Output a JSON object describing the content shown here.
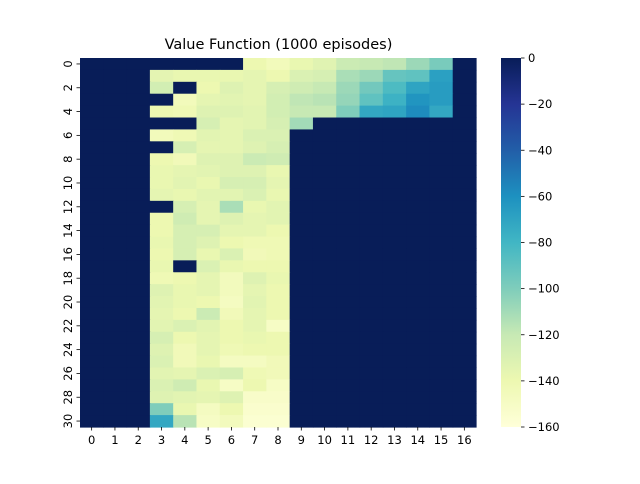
{
  "chart_data": {
    "type": "heatmap",
    "title": "Value Function (1000 episodes)",
    "xlabel": "",
    "ylabel": "",
    "x_ticks": [
      "0",
      "1",
      "2",
      "3",
      "4",
      "5",
      "6",
      "7",
      "8",
      "9",
      "10",
      "11",
      "12",
      "13",
      "14",
      "15",
      "16"
    ],
    "y_ticks": [
      "0",
      "2",
      "4",
      "6",
      "8",
      "10",
      "12",
      "14",
      "16",
      "18",
      "20",
      "22",
      "24",
      "26",
      "28",
      "30"
    ],
    "n_rows": 31,
    "n_cols": 17,
    "colormap": "YlGnBu",
    "vmin": -160,
    "vmax": 0,
    "colorbar_ticks": [
      "0",
      "−20",
      "−40",
      "−60",
      "−80",
      "−100",
      "−120",
      "−140",
      "−160"
    ],
    "values": [
      [
        0,
        0,
        0,
        0,
        0,
        0,
        0,
        -140,
        -145,
        -138,
        -133,
        -122,
        -120,
        -118,
        -108,
        -98,
        0
      ],
      [
        0,
        0,
        0,
        -135,
        -138,
        -138,
        -138,
        -136,
        -140,
        -130,
        -128,
        -112,
        -108,
        -92,
        -90,
        -68,
        0
      ],
      [
        0,
        0,
        0,
        -126,
        0,
        -140,
        -132,
        -136,
        -128,
        -124,
        -120,
        -108,
        -96,
        -84,
        -70,
        -66,
        0
      ],
      [
        0,
        0,
        0,
        0,
        -145,
        -136,
        -134,
        -136,
        -126,
        -118,
        -116,
        -106,
        -90,
        -78,
        -62,
        -66,
        0
      ],
      [
        0,
        0,
        0,
        -140,
        -142,
        -132,
        -132,
        -134,
        -126,
        -120,
        -120,
        -100,
        -72,
        -70,
        -58,
        -72,
        0
      ],
      [
        0,
        0,
        0,
        0,
        0,
        -128,
        -136,
        -134,
        -128,
        -110,
        0,
        0,
        0,
        0,
        0,
        0,
        0
      ],
      [
        0,
        0,
        0,
        -145,
        -142,
        -134,
        -136,
        -130,
        -130,
        0,
        0,
        0,
        0,
        0,
        0,
        0,
        0
      ],
      [
        0,
        0,
        0,
        0,
        -128,
        -136,
        -136,
        -132,
        -128,
        0,
        0,
        0,
        0,
        0,
        0,
        0,
        0
      ],
      [
        0,
        0,
        0,
        -140,
        -144,
        -132,
        -132,
        -122,
        -124,
        0,
        0,
        0,
        0,
        0,
        0,
        0,
        0
      ],
      [
        0,
        0,
        0,
        -138,
        -136,
        -134,
        -132,
        -132,
        -138,
        0,
        0,
        0,
        0,
        0,
        0,
        0,
        0
      ],
      [
        0,
        0,
        0,
        -138,
        -134,
        -138,
        -128,
        -128,
        -136,
        0,
        0,
        0,
        0,
        0,
        0,
        0,
        0
      ],
      [
        0,
        0,
        0,
        -136,
        -138,
        -134,
        -134,
        -130,
        -138,
        0,
        0,
        0,
        0,
        0,
        0,
        0,
        0
      ],
      [
        0,
        0,
        0,
        0,
        -128,
        -136,
        -112,
        -138,
        -134,
        0,
        0,
        0,
        0,
        0,
        0,
        0,
        0
      ],
      [
        0,
        0,
        0,
        -140,
        -124,
        -136,
        -132,
        -136,
        -134,
        0,
        0,
        0,
        0,
        0,
        0,
        0,
        0
      ],
      [
        0,
        0,
        0,
        -140,
        -128,
        -128,
        -136,
        -136,
        -140,
        0,
        0,
        0,
        0,
        0,
        0,
        0,
        0
      ],
      [
        0,
        0,
        0,
        -138,
        -128,
        -132,
        -140,
        -142,
        -142,
        0,
        0,
        0,
        0,
        0,
        0,
        0,
        0
      ],
      [
        0,
        0,
        0,
        -140,
        -128,
        -138,
        -130,
        -144,
        -142,
        0,
        0,
        0,
        0,
        0,
        0,
        0,
        0
      ],
      [
        0,
        0,
        0,
        -138,
        0,
        -130,
        -138,
        -140,
        -140,
        0,
        0,
        0,
        0,
        0,
        0,
        0,
        0
      ],
      [
        0,
        0,
        0,
        -142,
        -140,
        -136,
        -146,
        -132,
        -138,
        0,
        0,
        0,
        0,
        0,
        0,
        0,
        0
      ],
      [
        0,
        0,
        0,
        -132,
        -138,
        -136,
        -146,
        -136,
        -140,
        0,
        0,
        0,
        0,
        0,
        0,
        0,
        0
      ],
      [
        0,
        0,
        0,
        -134,
        -138,
        -140,
        -148,
        -134,
        -140,
        0,
        0,
        0,
        0,
        0,
        0,
        0,
        0
      ],
      [
        0,
        0,
        0,
        -136,
        -140,
        -122,
        -144,
        -136,
        -140,
        0,
        0,
        0,
        0,
        0,
        0,
        0,
        0
      ],
      [
        0,
        0,
        0,
        -134,
        -130,
        -134,
        -140,
        -136,
        -150,
        0,
        0,
        0,
        0,
        0,
        0,
        0,
        0
      ],
      [
        0,
        0,
        0,
        -128,
        -140,
        -136,
        -140,
        -138,
        -140,
        0,
        0,
        0,
        0,
        0,
        0,
        0,
        0
      ],
      [
        0,
        0,
        0,
        -132,
        -144,
        -136,
        -142,
        -140,
        -140,
        0,
        0,
        0,
        0,
        0,
        0,
        0,
        0
      ],
      [
        0,
        0,
        0,
        -130,
        -144,
        -138,
        -148,
        -148,
        -144,
        0,
        0,
        0,
        0,
        0,
        0,
        0,
        0
      ],
      [
        0,
        0,
        0,
        -134,
        -136,
        -130,
        -128,
        -142,
        -144,
        0,
        0,
        0,
        0,
        0,
        0,
        0,
        0
      ],
      [
        0,
        0,
        0,
        -130,
        -124,
        -138,
        -150,
        -140,
        -150,
        0,
        0,
        0,
        0,
        0,
        0,
        0,
        0
      ],
      [
        0,
        0,
        0,
        -132,
        -134,
        -136,
        -132,
        -152,
        -152,
        0,
        0,
        0,
        0,
        0,
        0,
        0,
        0
      ],
      [
        0,
        0,
        0,
        -100,
        -138,
        -148,
        -140,
        -154,
        -154,
        0,
        0,
        0,
        0,
        0,
        0,
        0,
        0
      ],
      [
        0,
        0,
        0,
        -72,
        -116,
        -150,
        -146,
        -156,
        -156,
        0,
        0,
        0,
        0,
        0,
        0,
        0,
        0
      ]
    ]
  }
}
